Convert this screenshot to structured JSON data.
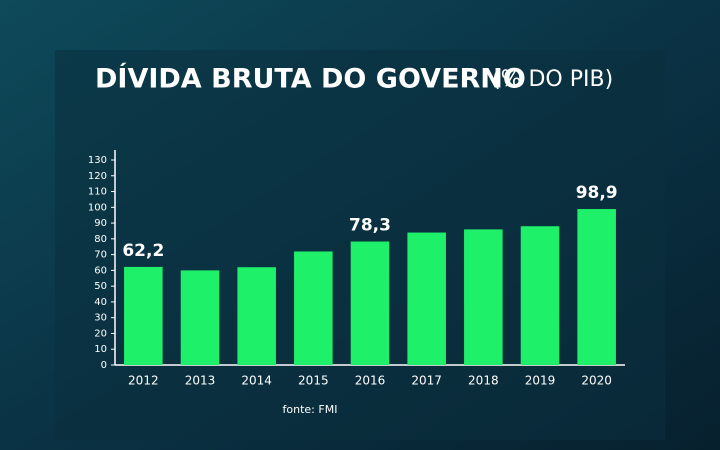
{
  "chart_data": {
    "type": "bar",
    "title": "DÍVIDA BRUTA DO GOVERNO",
    "subtitle": "(% DO PIB)",
    "source": "fonte: FMI",
    "categories": [
      "2012",
      "2013",
      "2014",
      "2015",
      "2016",
      "2017",
      "2018",
      "2019",
      "2020"
    ],
    "values": [
      62.2,
      60,
      62,
      72,
      78.3,
      84,
      86,
      88,
      98.9
    ],
    "value_labels": [
      "62,2",
      null,
      null,
      null,
      "78,3",
      null,
      null,
      null,
      "98,9"
    ],
    "color": "#1ff06a",
    "ylim": [
      0,
      130
    ],
    "yticks": [
      0,
      10,
      20,
      30,
      40,
      50,
      60,
      70,
      80,
      90,
      100,
      110,
      120,
      130
    ]
  }
}
